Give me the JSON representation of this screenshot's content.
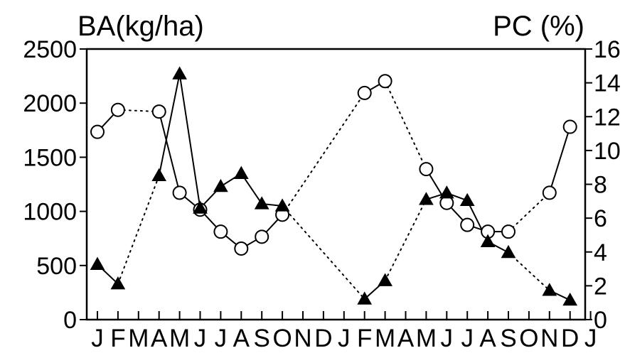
{
  "chart_data": {
    "type": "line",
    "left_axis_title": "BA(kg/ha)",
    "right_axis_title": "PC (%)",
    "left_ylim": [
      0,
      2500
    ],
    "left_ticks": [
      "0",
      "500",
      "1000",
      "1500",
      "2000",
      "2500"
    ],
    "right_ylim": [
      0,
      16
    ],
    "right_ticks": [
      "0",
      "2",
      "4",
      "6",
      "8",
      "10",
      "12",
      "14",
      "16"
    ],
    "months": [
      "J",
      "F",
      "M",
      "A",
      "M",
      "J",
      "J",
      "A",
      "S",
      "O",
      "N",
      "D",
      "J",
      "F",
      "M",
      "A",
      "M",
      "J",
      "J",
      "A",
      "S",
      "O",
      "N",
      "D",
      "J"
    ],
    "series": [
      {
        "marker": "circle",
        "axis": "right",
        "values": [
          11.1,
          12.4,
          null,
          12.3,
          7.5,
          6.5,
          5.2,
          4.2,
          4.9,
          6.2,
          null,
          null,
          null,
          13.4,
          14.1,
          null,
          8.9,
          6.9,
          5.6,
          5.2,
          5.2,
          null,
          7.5,
          11.4,
          null
        ],
        "segments": [
          [
            "solid",
            0,
            1
          ],
          [
            "dotted",
            1,
            3
          ],
          [
            "solid",
            3,
            4
          ],
          [
            "solid",
            4,
            5
          ],
          [
            "solid",
            5,
            6
          ],
          [
            "solid",
            6,
            7
          ],
          [
            "solid",
            7,
            8
          ],
          [
            "solid",
            8,
            9
          ],
          [
            "dotted",
            9,
            13
          ],
          [
            "solid",
            13,
            14
          ],
          [
            "dotted",
            14,
            16
          ],
          [
            "solid",
            16,
            17
          ],
          [
            "solid",
            17,
            18
          ],
          [
            "solid",
            18,
            19
          ],
          [
            "solid",
            19,
            20
          ],
          [
            "dotted",
            20,
            22
          ],
          [
            "solid",
            22,
            23
          ]
        ]
      },
      {
        "marker": "triangle",
        "axis": "left",
        "values": [
          510,
          330,
          null,
          1330,
          2270,
          1030,
          1230,
          1350,
          1070,
          1050,
          null,
          null,
          null,
          190,
          360,
          null,
          1110,
          1170,
          1100,
          720,
          620,
          null,
          270,
          180,
          null
        ],
        "segments": [
          [
            "solid",
            0,
            1
          ],
          [
            "dotted",
            1,
            3
          ],
          [
            "solid",
            3,
            4
          ],
          [
            "solid",
            4,
            5
          ],
          [
            "solid",
            5,
            6
          ],
          [
            "solid",
            6,
            7
          ],
          [
            "solid",
            7,
            8
          ],
          [
            "solid",
            8,
            9
          ],
          [
            "dotted",
            9,
            13
          ],
          [
            "solid",
            13,
            14
          ],
          [
            "dotted",
            14,
            16
          ],
          [
            "solid",
            16,
            17
          ],
          [
            "solid",
            17,
            18
          ],
          [
            "solid",
            18,
            19
          ],
          [
            "solid",
            19,
            20
          ],
          [
            "dotted",
            20,
            22
          ],
          [
            "solid",
            22,
            23
          ]
        ]
      }
    ],
    "grid": false,
    "legend": "none"
  }
}
